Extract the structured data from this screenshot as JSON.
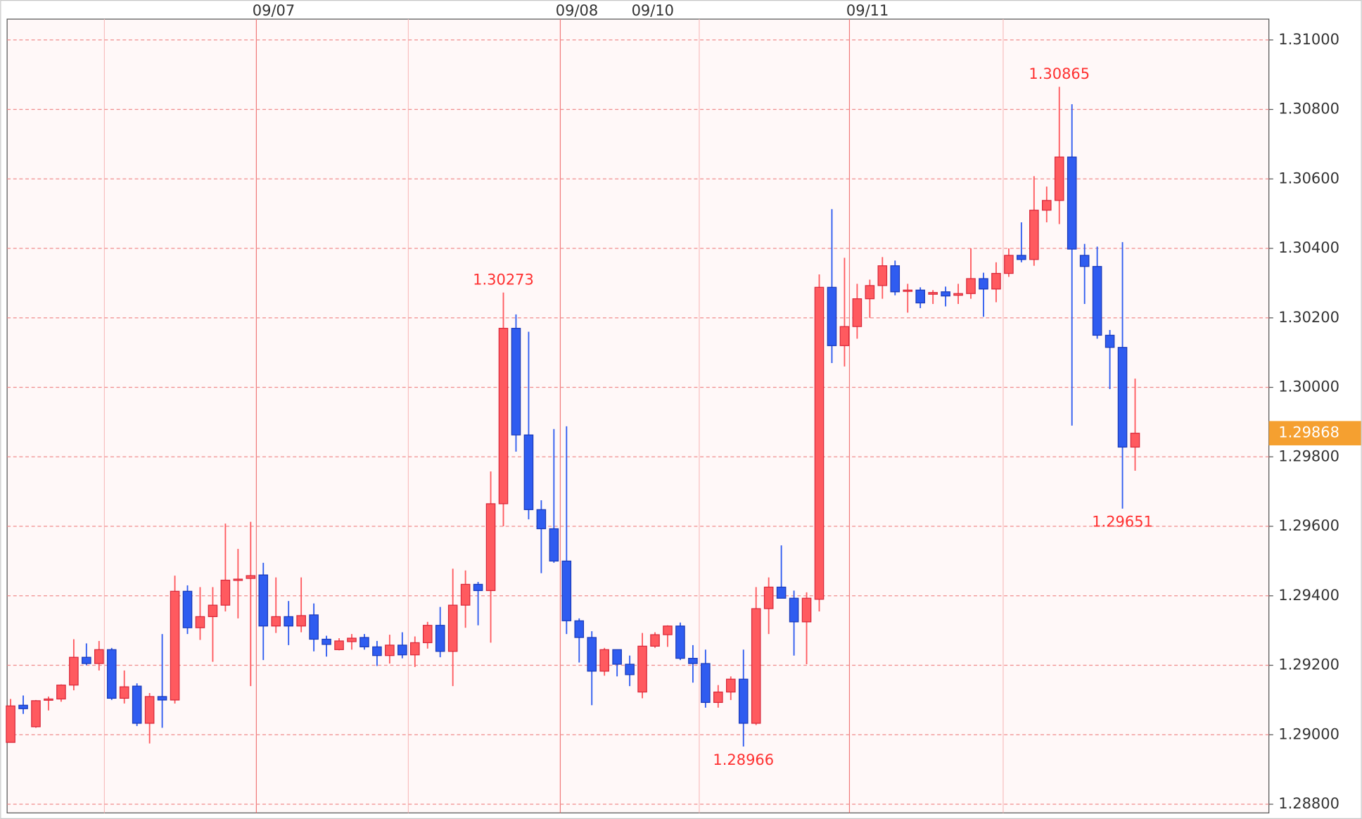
{
  "chart_data": {
    "type": "candlestick",
    "categories": [
      null,
      null,
      null,
      null,
      null,
      null,
      null,
      null,
      null,
      null,
      null,
      null,
      null,
      null,
      null,
      null,
      null,
      null,
      null,
      "09/07",
      null,
      null,
      null,
      null,
      null,
      null,
      null,
      null,
      null,
      null,
      null,
      null,
      null,
      null,
      null,
      null,
      null,
      null,
      null,
      null,
      null,
      null,
      null,
      "09/08",
      null,
      null,
      null,
      null,
      null,
      "09/10",
      null,
      null,
      null,
      null,
      null,
      null,
      null,
      null,
      null,
      null,
      null,
      null,
      null,
      null,
      null,
      null,
      "09/11",
      null,
      null,
      null,
      null,
      null,
      null,
      null,
      null,
      null,
      null,
      null,
      null,
      null,
      null,
      null,
      null,
      null,
      null,
      null,
      null,
      null,
      null,
      null
    ],
    "open": [
      1.28978,
      1.29085,
      1.29023,
      1.291,
      1.29103,
      1.29143,
      1.29223,
      1.29205,
      1.29245,
      1.29105,
      1.2914,
      1.29033,
      1.2911,
      1.291,
      1.29413,
      1.29308,
      1.2934,
      1.29373,
      1.29445,
      1.2945,
      1.2946,
      1.29313,
      1.2934,
      1.29313,
      1.29345,
      1.29275,
      1.29245,
      1.29268,
      1.2928,
      1.29253,
      1.29228,
      1.29258,
      1.2923,
      1.29265,
      1.29315,
      1.2924,
      1.29373,
      1.29433,
      1.29415,
      1.29665,
      1.3017,
      1.29863,
      1.29648,
      1.29593,
      1.295,
      1.29328,
      1.2928,
      1.29183,
      1.29245,
      1.29203,
      1.29123,
      1.29255,
      1.29288,
      1.29313,
      1.2922,
      1.29205,
      1.29093,
      1.29123,
      1.2916,
      1.29033,
      1.29363,
      1.29425,
      1.29393,
      1.29325,
      1.2939,
      1.30288,
      1.3012,
      1.30175,
      1.30255,
      1.30293,
      1.3035,
      1.30278,
      1.3028,
      1.30268,
      1.30275,
      1.30265,
      1.3027,
      1.30313,
      1.30283,
      1.30328,
      1.3038,
      1.30368,
      1.3051,
      1.30538,
      1.30663,
      1.3038,
      1.30348,
      1.3015,
      1.30115,
      1.29828
    ],
    "high": [
      1.29103,
      1.29113,
      1.291,
      1.2911,
      1.29145,
      1.29275,
      1.29263,
      1.2927,
      1.2925,
      1.29185,
      1.29148,
      1.2912,
      1.2929,
      1.29458,
      1.2943,
      1.29425,
      1.29425,
      1.29608,
      1.29535,
      1.29613,
      1.29495,
      1.29453,
      1.29385,
      1.29453,
      1.29378,
      1.29285,
      1.29278,
      1.2929,
      1.2929,
      1.2927,
      1.29288,
      1.29295,
      1.29283,
      1.29325,
      1.29368,
      1.29478,
      1.29473,
      1.2944,
      1.29758,
      1.30273,
      1.3021,
      1.3016,
      1.29675,
      1.2988,
      1.29888,
      1.29335,
      1.29298,
      1.2925,
      1.29245,
      1.29228,
      1.29293,
      1.29295,
      1.29315,
      1.29323,
      1.29258,
      1.29245,
      1.29143,
      1.29168,
      1.29245,
      1.29425,
      1.29453,
      1.29545,
      1.29415,
      1.2941,
      1.30325,
      1.30513,
      1.30373,
      1.30298,
      1.3031,
      1.30375,
      1.30365,
      1.30298,
      1.30288,
      1.3028,
      1.3029,
      1.30298,
      1.304,
      1.3033,
      1.3036,
      1.304,
      1.30475,
      1.30608,
      1.30578,
      1.30865,
      1.30815,
      1.30413,
      1.30405,
      1.30165,
      1.30418,
      1.30025
    ],
    "low": [
      1.2898,
      1.2906,
      1.2902,
      1.2907,
      1.29095,
      1.29128,
      1.292,
      1.29185,
      1.291,
      1.2909,
      1.29025,
      1.28975,
      1.2902,
      1.2909,
      1.2929,
      1.29273,
      1.2921,
      1.29355,
      1.29335,
      1.2914,
      1.29215,
      1.29293,
      1.29258,
      1.29295,
      1.2924,
      1.29225,
      1.29243,
      1.29245,
      1.29245,
      1.29198,
      1.29205,
      1.2922,
      1.29195,
      1.29248,
      1.29223,
      1.2914,
      1.29308,
      1.29315,
      1.29265,
      1.296,
      1.29815,
      1.2962,
      1.29465,
      1.29495,
      1.2929,
      1.29208,
      1.29085,
      1.2917,
      1.29168,
      1.2914,
      1.29105,
      1.2925,
      1.29253,
      1.29215,
      1.2915,
      1.29078,
      1.29078,
      1.291,
      1.28966,
      1.29028,
      1.2929,
      1.29395,
      1.29228,
      1.29203,
      1.29355,
      1.3007,
      1.3006,
      1.3014,
      1.302,
      1.30255,
      1.30265,
      1.30215,
      1.30228,
      1.3024,
      1.30233,
      1.3024,
      1.30255,
      1.30203,
      1.30245,
      1.30318,
      1.3036,
      1.3035,
      1.30475,
      1.3047,
      1.2989,
      1.3024,
      1.3014,
      1.29995,
      1.29651,
      1.2976
    ],
    "close": [
      1.29083,
      1.29075,
      1.29098,
      1.29103,
      1.29143,
      1.29223,
      1.29205,
      1.29245,
      1.29105,
      1.29138,
      1.29033,
      1.2911,
      1.291,
      1.29413,
      1.29308,
      1.2934,
      1.29373,
      1.29445,
      1.29448,
      1.29458,
      1.29313,
      1.2934,
      1.29313,
      1.29343,
      1.29275,
      1.2926,
      1.2927,
      1.29278,
      1.29253,
      1.29228,
      1.29258,
      1.2923,
      1.29265,
      1.29315,
      1.2924,
      1.29373,
      1.29433,
      1.29415,
      1.29665,
      1.3017,
      1.29863,
      1.29648,
      1.29593,
      1.295,
      1.29328,
      1.2928,
      1.29183,
      1.29245,
      1.29203,
      1.29173,
      1.29255,
      1.29288,
      1.29313,
      1.2922,
      1.29205,
      1.29093,
      1.29123,
      1.2916,
      1.29033,
      1.29363,
      1.29425,
      1.29393,
      1.29325,
      1.29393,
      1.30288,
      1.3012,
      1.30175,
      1.30255,
      1.30293,
      1.3035,
      1.30275,
      1.3028,
      1.30243,
      1.30273,
      1.30263,
      1.3027,
      1.30313,
      1.30283,
      1.30328,
      1.3038,
      1.30368,
      1.3051,
      1.30538,
      1.30663,
      1.30398,
      1.30348,
      1.3015,
      1.30115,
      1.29828,
      1.29868
    ],
    "up_color": "#ff5a5f",
    "down_color": "#2f5cf0",
    "ylim": [
      1.28775,
      1.3106
    ],
    "yticks": [
      {
        "value": 1.288,
        "label": "1.28800"
      },
      {
        "value": 1.29,
        "label": "1.29000"
      },
      {
        "value": 1.292,
        "label": "1.29200"
      },
      {
        "value": 1.294,
        "label": "1.29400"
      },
      {
        "value": 1.296,
        "label": "1.29600"
      },
      {
        "value": 1.298,
        "label": "1.29800"
      },
      {
        "value": 1.3,
        "label": "1.30000"
      },
      {
        "value": 1.302,
        "label": "1.30200"
      },
      {
        "value": 1.304,
        "label": "1.30400"
      },
      {
        "value": 1.306,
        "label": "1.30600"
      },
      {
        "value": 1.308,
        "label": "1.30800"
      },
      {
        "value": 1.31,
        "label": "1.31000"
      }
    ],
    "grid": true,
    "annotations": [
      {
        "value": 1.30273,
        "label": "1.30273"
      },
      {
        "value": 1.28966,
        "label": "1.28966"
      },
      {
        "value": 1.30865,
        "label": "1.30865"
      },
      {
        "value": 1.29651,
        "label": "1.29651"
      }
    ],
    "last_price": {
      "value": 1.29868,
      "label": "1.29868"
    }
  }
}
